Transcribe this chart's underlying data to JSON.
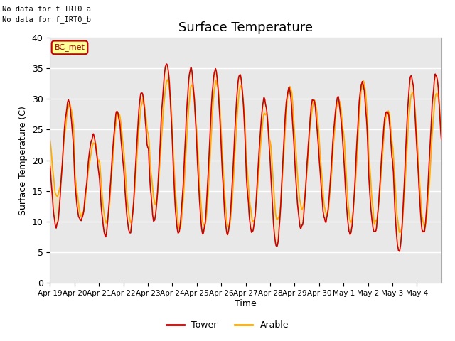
{
  "title": "Surface Temperature",
  "ylabel": "Surface Temperature (C)",
  "xlabel": "Time",
  "ylim": [
    0,
    40
  ],
  "yticks": [
    0,
    5,
    10,
    15,
    20,
    25,
    30,
    35,
    40
  ],
  "x_tick_labels": [
    "Apr 19",
    "Apr 20",
    "Apr 21",
    "Apr 22",
    "Apr 23",
    "Apr 24",
    "Apr 25",
    "Apr 26",
    "Apr 27",
    "Apr 28",
    "Apr 29",
    "Apr 30",
    "May 1",
    "May 2",
    "May 3",
    "May 4"
  ],
  "no_data_text1": "No data for f_IRT0_a",
  "no_data_text2": "No data for f_IRT0_b",
  "legend_label_bc_met": "BC_met",
  "legend_labels": [
    "Tower",
    "Arable"
  ],
  "tower_color": "#cc0000",
  "arable_color": "#ffaa00",
  "bc_met_box_color": "#ffff99",
  "bc_met_border_color": "#cc0000",
  "background_color": "#ffffff",
  "plot_bg_color": "#e8e8e8",
  "title_fontsize": 13,
  "axis_fontsize": 9,
  "day_maxes_tower": [
    30,
    24,
    28,
    31,
    36,
    35,
    35,
    34,
    30,
    32,
    30,
    30,
    33,
    28,
    34,
    34
  ],
  "day_mins_tower": [
    9,
    10,
    8,
    8,
    10,
    8,
    8,
    8,
    8,
    6,
    9,
    10,
    8,
    8,
    5,
    8
  ],
  "day_maxes_arable": [
    29,
    23,
    28,
    30,
    33,
    32,
    33,
    32,
    28,
    32,
    30,
    30,
    33,
    28,
    31,
    31
  ],
  "day_mins_arable": [
    14,
    11,
    10,
    10,
    13,
    9,
    9,
    9,
    10,
    10,
    12,
    11,
    10,
    10,
    8,
    9
  ]
}
